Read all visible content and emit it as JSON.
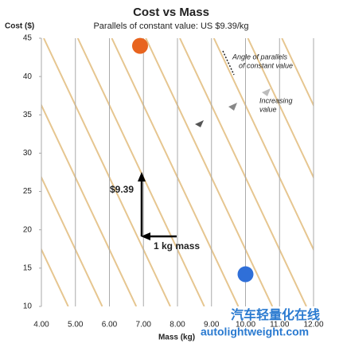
{
  "chart_data": {
    "type": "scatter",
    "title": "Cost vs Mass",
    "subtitle": "Parallels of constant value: US $9.39/kg",
    "x_label": "Mass (kg)",
    "y_label": "Cost ($)",
    "series": [
      {
        "color": "#e8641e",
        "x": [
          6.9
        ],
        "values": [
          44.0
        ]
      },
      {
        "color": "#2f6fd8",
        "x": [
          10.0
        ],
        "values": [
          14.2
        ]
      }
    ],
    "xlim": [
      4,
      12
    ],
    "xticks": [
      {
        "value": 4,
        "label": "4.00"
      },
      {
        "value": 5,
        "label": "5.00"
      },
      {
        "value": 6,
        "label": "6.00"
      },
      {
        "value": 7,
        "label": "7.00"
      },
      {
        "value": 8,
        "label": "8.00"
      },
      {
        "value": 9,
        "label": "9.00"
      },
      {
        "value": 10,
        "label": "10.00"
      },
      {
        "value": 11,
        "label": "11.00"
      },
      {
        "value": 12,
        "label": "12.00"
      }
    ],
    "ylim": [
      10,
      45
    ],
    "yticks": [
      10,
      15,
      20,
      25,
      30,
      35,
      40,
      45
    ],
    "grid": true,
    "annotations": {
      "angle": "Angle of parallels",
      "angle2": "of  constant value",
      "increasing": "Increasing",
      "increasing2": "value",
      "price": "$9.39",
      "mass": "1 kg mass"
    },
    "watermark": {
      "line1": "汽车轻量化在线",
      "line2": "autolightweight.com"
    }
  }
}
